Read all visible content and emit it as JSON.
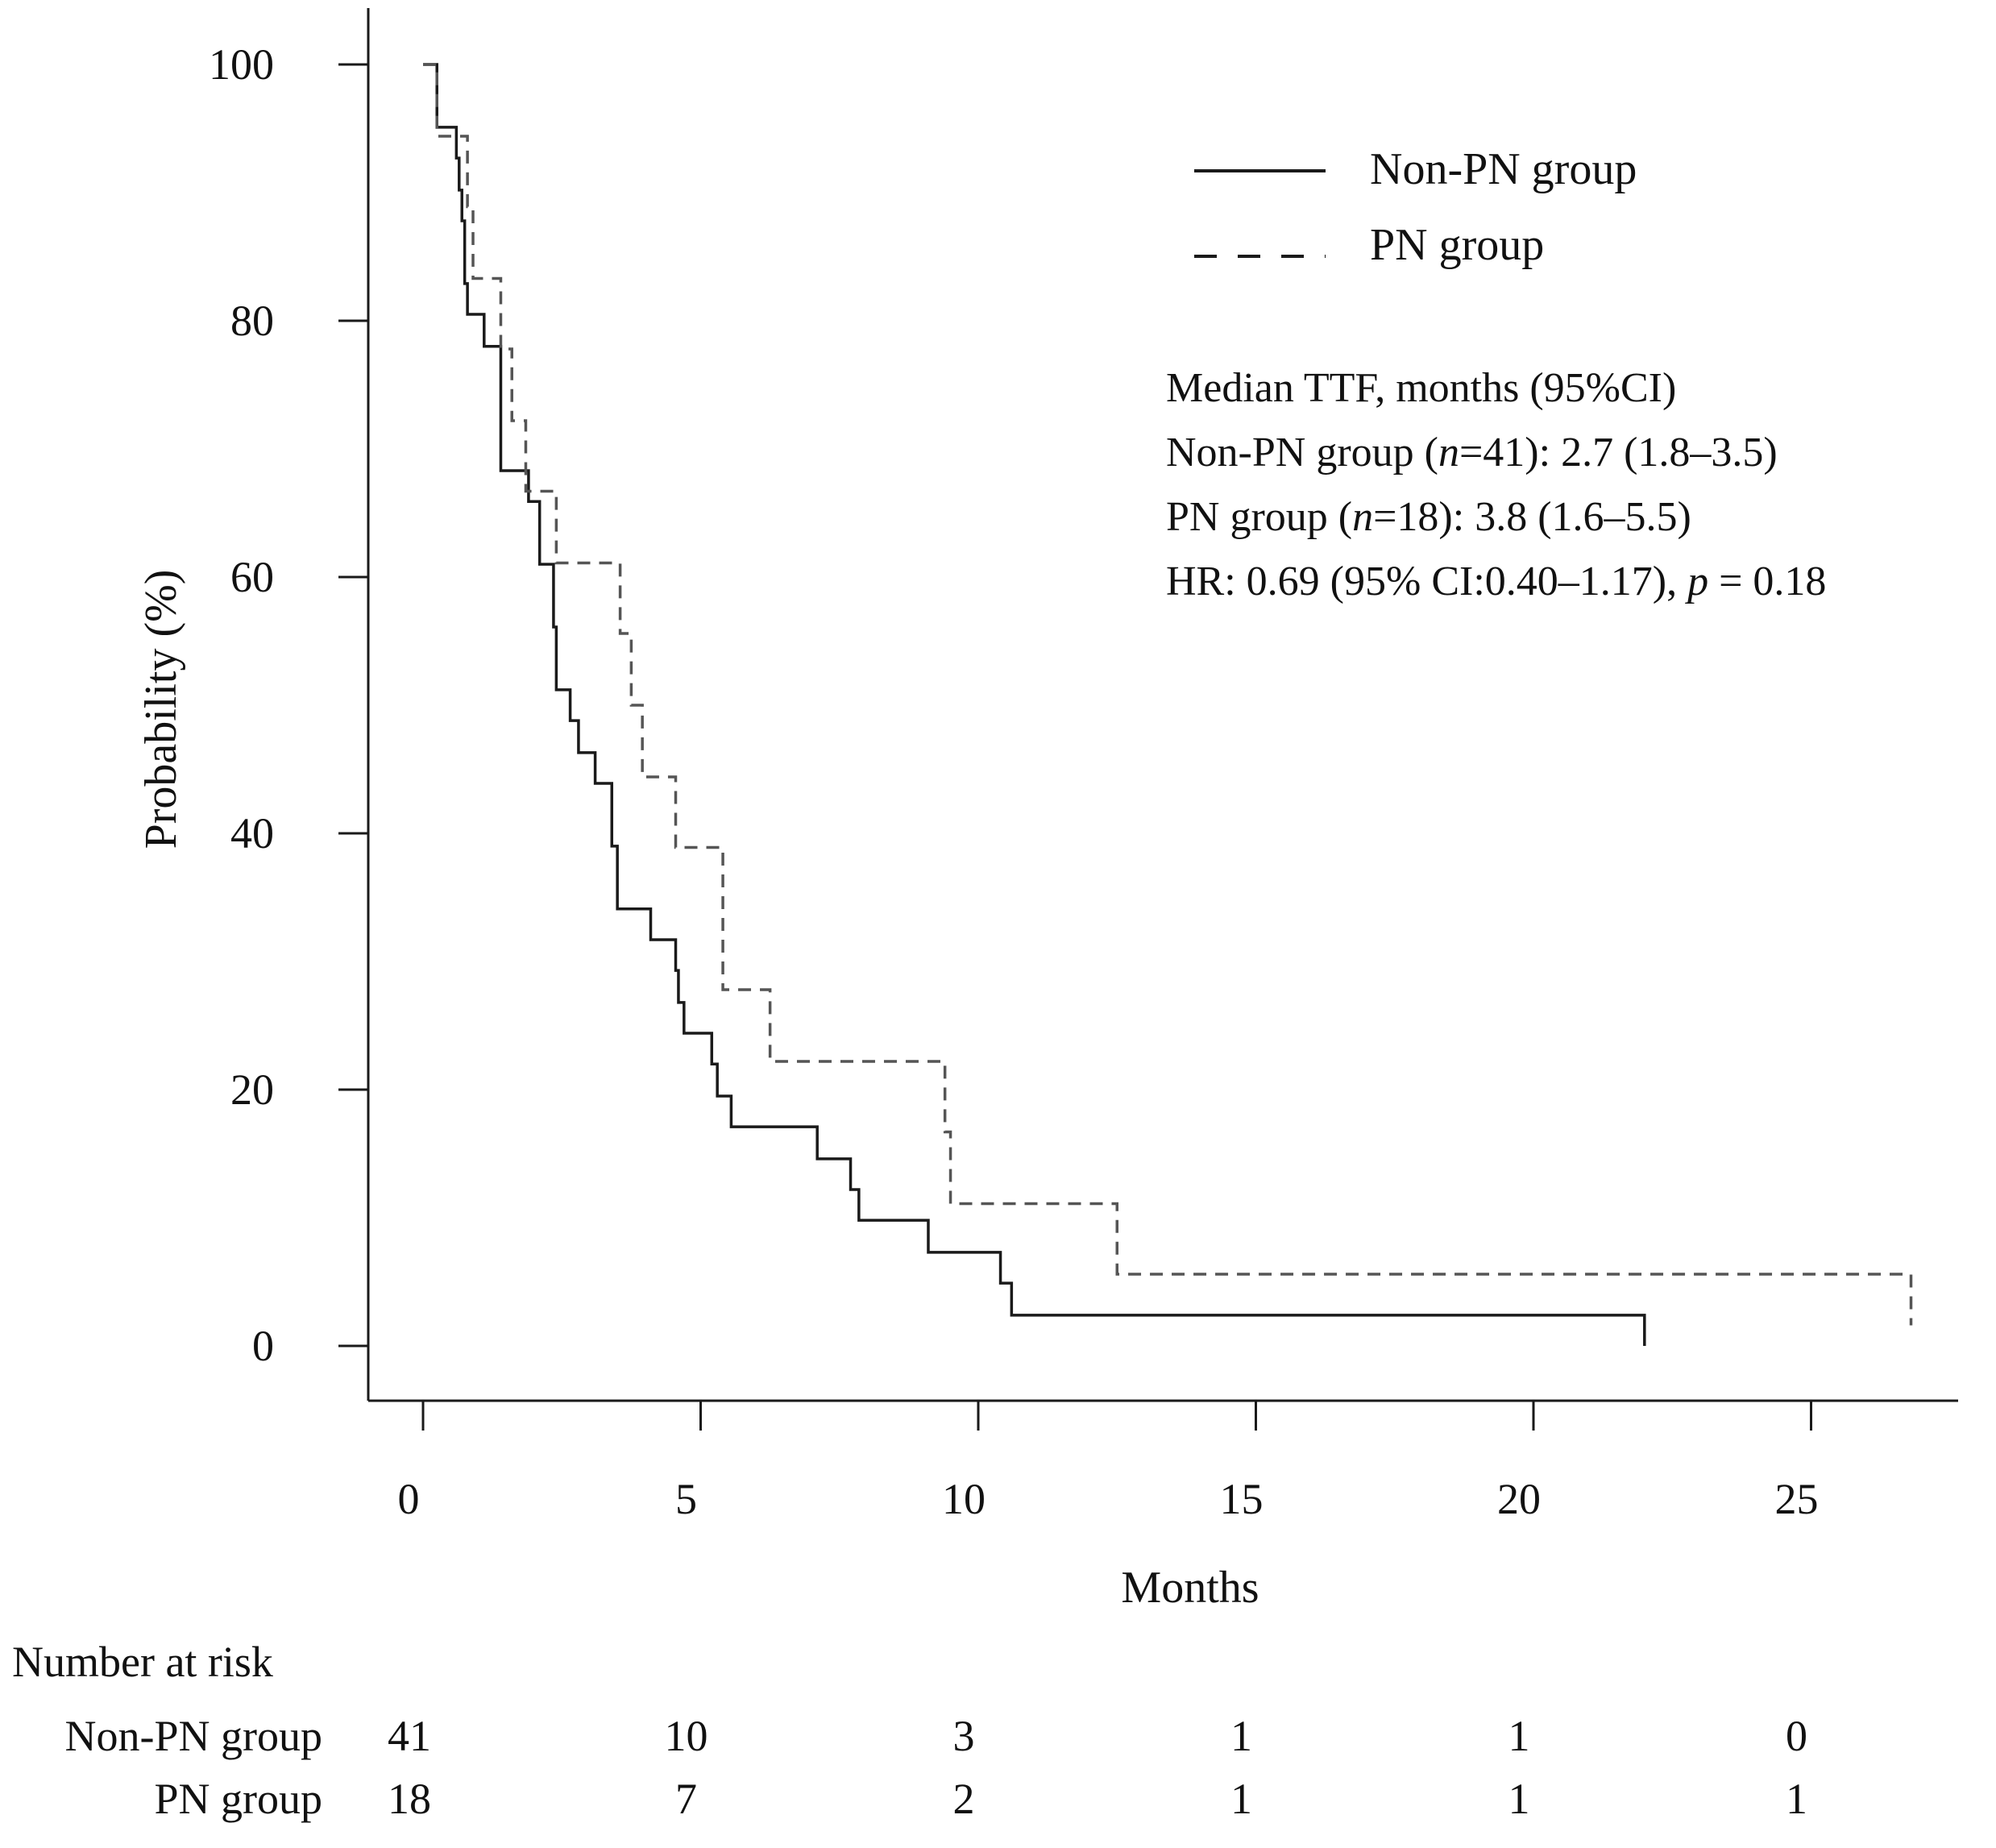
{
  "chart_data": {
    "type": "line",
    "subtype": "kaplan-meier",
    "title": "",
    "xlabel": "Months",
    "ylabel": "Probability (%)",
    "xlim": [
      0,
      28
    ],
    "ylim": [
      0,
      100
    ],
    "xticks": [
      0,
      5,
      10,
      15,
      20,
      25
    ],
    "yticks": [
      0,
      20,
      40,
      60,
      80,
      100
    ],
    "legend": {
      "placement": "top-right",
      "entries": [
        {
          "name": "Non-PN group",
          "style": "solid"
        },
        {
          "name": "PN group",
          "style": "dashed"
        }
      ]
    },
    "annotation": {
      "heading": "Median TTF, months (95%CI)",
      "line1_pre": "Non-PN group (",
      "line1_n": "n",
      "line1_post": "=41): 2.7 (1.8–3.5)",
      "line2_pre": "PN group (",
      "line2_n": "n",
      "line2_post": "=18): 3.8 (1.6–5.5)",
      "line3_pre": "HR: 0.69 (95% CI:0.40–1.17), ",
      "line3_p": "p",
      "line3_post": " = 0.18"
    },
    "series": [
      {
        "name": "Non-PN group",
        "style": "solid",
        "color": "#1a1a1a",
        "points": [
          [
            0,
            100
          ],
          [
            0.25,
            95.1
          ],
          [
            0.6,
            92.7
          ],
          [
            0.65,
            90.2
          ],
          [
            0.7,
            87.8
          ],
          [
            0.75,
            82.9
          ],
          [
            0.8,
            80.5
          ],
          [
            1.1,
            78.0
          ],
          [
            1.4,
            68.3
          ],
          [
            1.9,
            65.9
          ],
          [
            2.1,
            61.0
          ],
          [
            2.35,
            56.1
          ],
          [
            2.4,
            51.2
          ],
          [
            2.65,
            48.8
          ],
          [
            2.8,
            46.3
          ],
          [
            3.1,
            43.9
          ],
          [
            3.4,
            39.0
          ],
          [
            3.5,
            34.1
          ],
          [
            4.1,
            31.7
          ],
          [
            4.55,
            29.3
          ],
          [
            4.6,
            26.8
          ],
          [
            4.7,
            24.4
          ],
          [
            5.2,
            22.0
          ],
          [
            5.3,
            19.5
          ],
          [
            5.55,
            17.1
          ],
          [
            7.1,
            14.6
          ],
          [
            7.7,
            12.2
          ],
          [
            7.85,
            9.8
          ],
          [
            9.1,
            7.3
          ],
          [
            10.4,
            4.9
          ],
          [
            10.6,
            2.4
          ]
        ],
        "end": 22.0,
        "end_censor_drop": 2.4
      },
      {
        "name": "PN group",
        "style": "dashed",
        "color": "#555555",
        "points": [
          [
            0,
            100
          ],
          [
            0.25,
            94.4
          ],
          [
            0.8,
            88.9
          ],
          [
            0.9,
            83.3
          ],
          [
            1.4,
            77.8
          ],
          [
            1.6,
            72.2
          ],
          [
            1.85,
            66.7
          ],
          [
            2.4,
            61.1
          ],
          [
            3.55,
            55.6
          ],
          [
            3.75,
            50.0
          ],
          [
            3.95,
            44.4
          ],
          [
            4.55,
            38.9
          ],
          [
            5.4,
            27.8
          ],
          [
            6.25,
            22.2
          ],
          [
            9.4,
            16.7
          ],
          [
            9.5,
            11.1
          ],
          [
            12.5,
            5.6
          ]
        ],
        "end": 26.8,
        "end_censor_drop": 4.0
      }
    ],
    "risk_table": {
      "title": "Number at risk",
      "times": [
        0,
        5,
        10,
        15,
        20,
        25
      ],
      "rows": [
        {
          "label": "Non-PN group",
          "values": [
            "41",
            "10",
            "3",
            "1",
            "1",
            "0"
          ]
        },
        {
          "label": "PN group",
          "values": [
            "18",
            "7",
            "2",
            "1",
            "1",
            "1"
          ]
        }
      ]
    }
  }
}
